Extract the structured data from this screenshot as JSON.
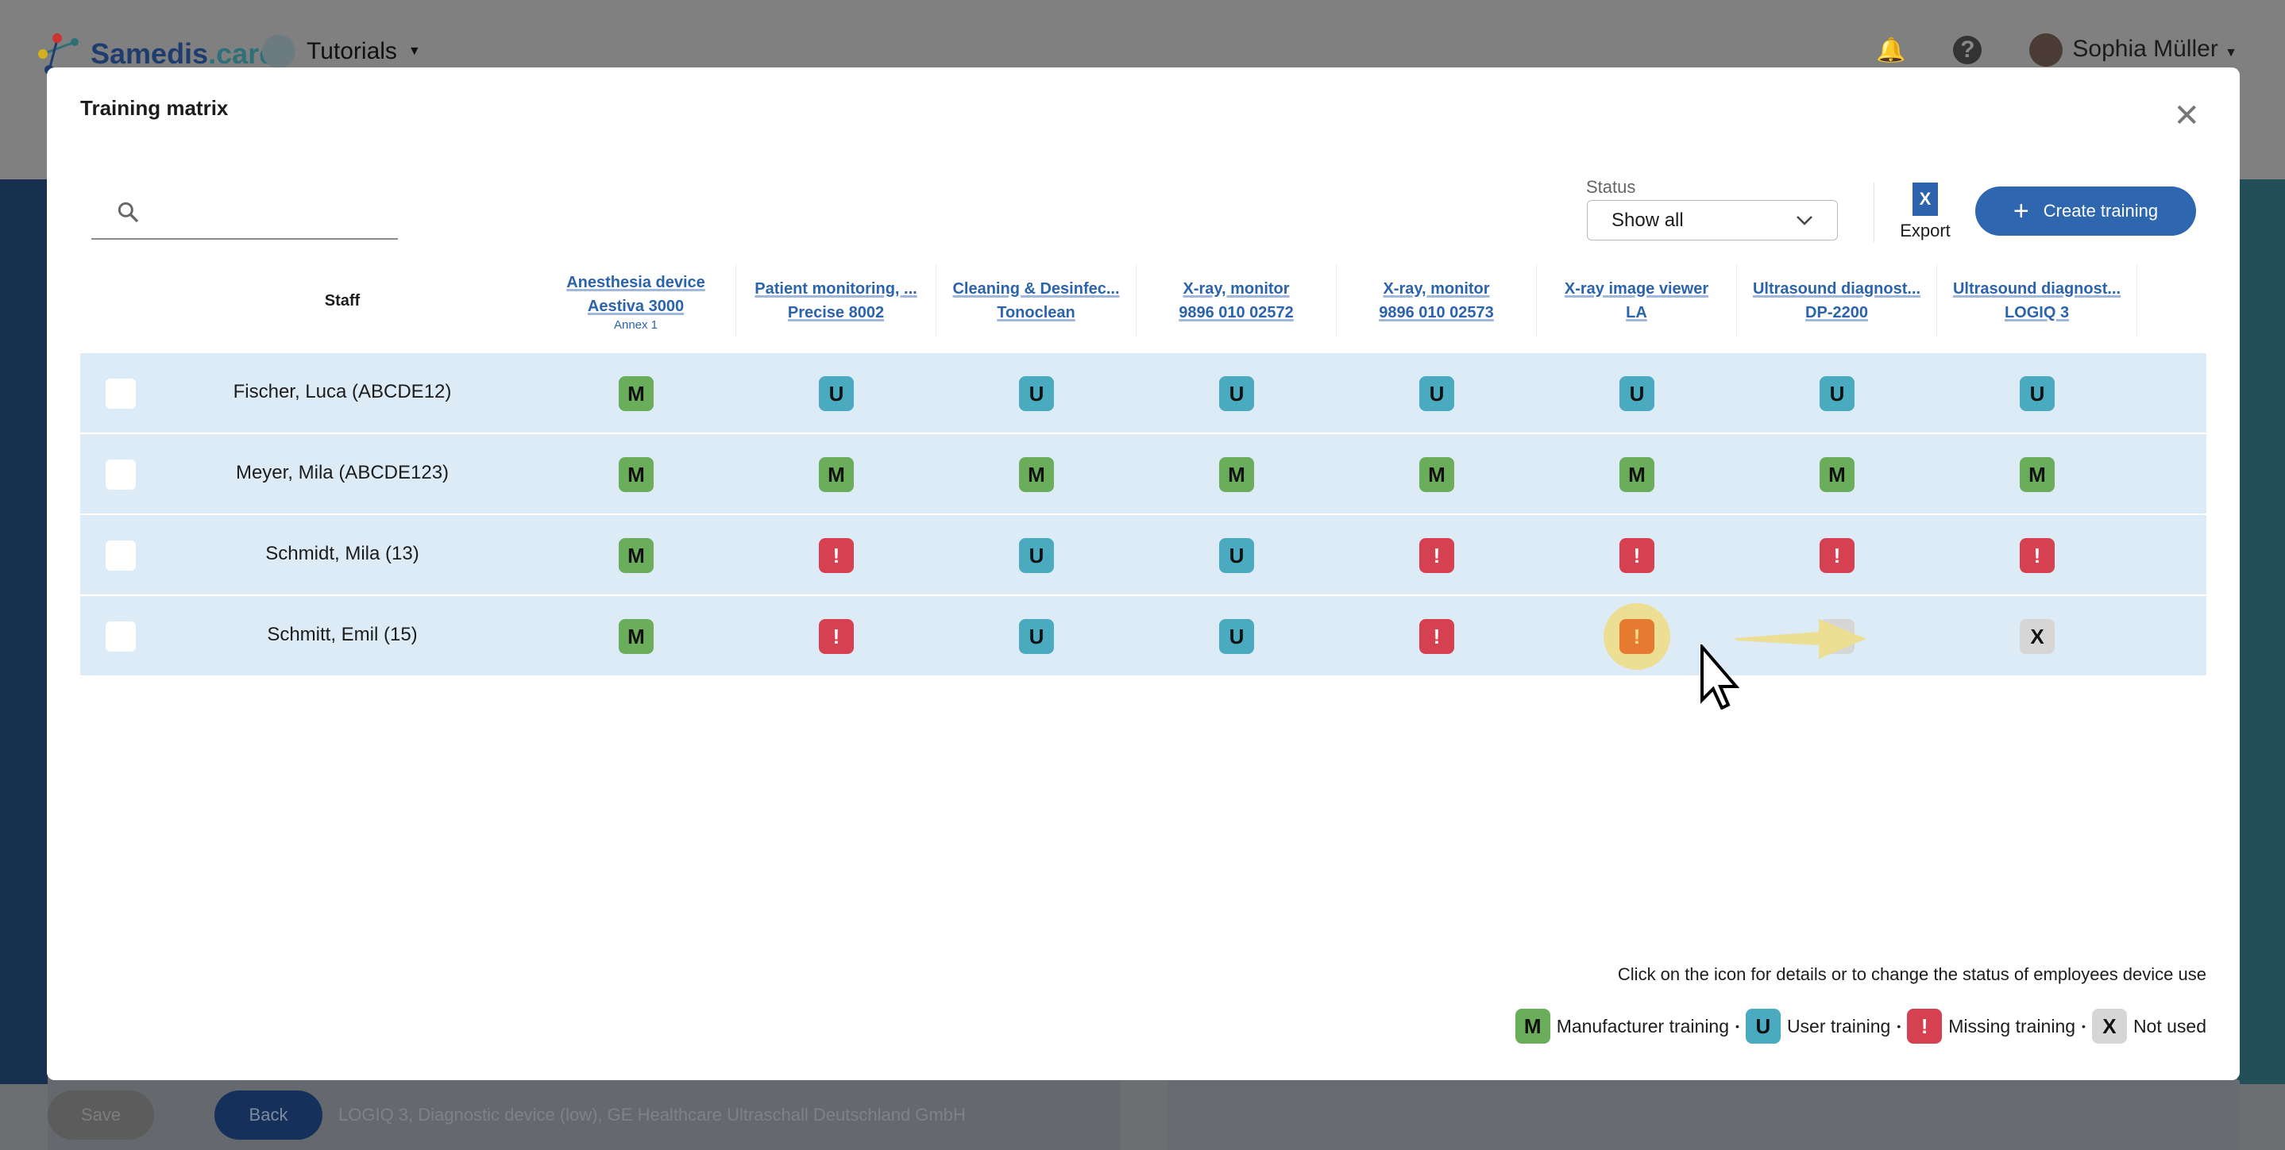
{
  "app": {
    "brand_main": "Samedis",
    "brand_suffix": ".care",
    "workspace": "Tutorials",
    "user": "Sophia Müller"
  },
  "background": {
    "save": "Save",
    "back": "Back",
    "text": "LOGIQ 3, Diagnostic device (low), GE Healthcare Ultraschall Deutschland GmbH"
  },
  "modal": {
    "title": "Training matrix",
    "status_label": "Status",
    "status_value": "Show all",
    "export_label": "Export",
    "create_label": "Create training",
    "hint": "Click on the icon for details or to change the status of employees device use"
  },
  "table": {
    "staff_header": "Staff",
    "devices": [
      {
        "name": "Anesthesia device",
        "model": "Aestiva 3000",
        "note": "Annex 1"
      },
      {
        "name": "Patient monitoring, ...",
        "model": "Precise 8002"
      },
      {
        "name": "Cleaning & Desinfec...",
        "model": "Tonoclean"
      },
      {
        "name": "X-ray, monitor",
        "model": "9896 010 02572"
      },
      {
        "name": "X-ray, monitor",
        "model": "9896 010 02573"
      },
      {
        "name": "X-ray image viewer",
        "model": "LA"
      },
      {
        "name": "Ultrasound diagnost...",
        "model": "DP-2200"
      },
      {
        "name": "Ultrasound diagnost...",
        "model": "LOGIQ 3"
      }
    ],
    "rows": [
      {
        "name": "Fischer, Luca (ABCDE12)",
        "status": [
          "M",
          "U",
          "U",
          "U",
          "U",
          "U",
          "U",
          "U"
        ]
      },
      {
        "name": "Meyer, Mila (ABCDE123)",
        "status": [
          "M",
          "M",
          "M",
          "M",
          "M",
          "M",
          "M",
          "M"
        ]
      },
      {
        "name": "Schmidt, Mila (13)",
        "status": [
          "M",
          "!",
          "U",
          "U",
          "!",
          "!",
          "!",
          "!"
        ]
      },
      {
        "name": "Schmitt, Emil (15)",
        "status": [
          "M",
          "!",
          "U",
          "U",
          "!",
          "!",
          "X",
          "X"
        ]
      }
    ],
    "highlighted": {
      "row": 3,
      "col": 5
    }
  },
  "legend": [
    {
      "code": "M",
      "label": "Manufacturer training"
    },
    {
      "code": "U",
      "label": "User training"
    },
    {
      "code": "!",
      "label": "Missing training"
    },
    {
      "code": "X",
      "label": "Not used"
    }
  ],
  "legend_sep": "•",
  "colors": {
    "M": "#6aad5a",
    "U": "#4aaac0",
    "!": "#d64152",
    "X": "#d6d6d6",
    "accent": "#2e66b0"
  }
}
